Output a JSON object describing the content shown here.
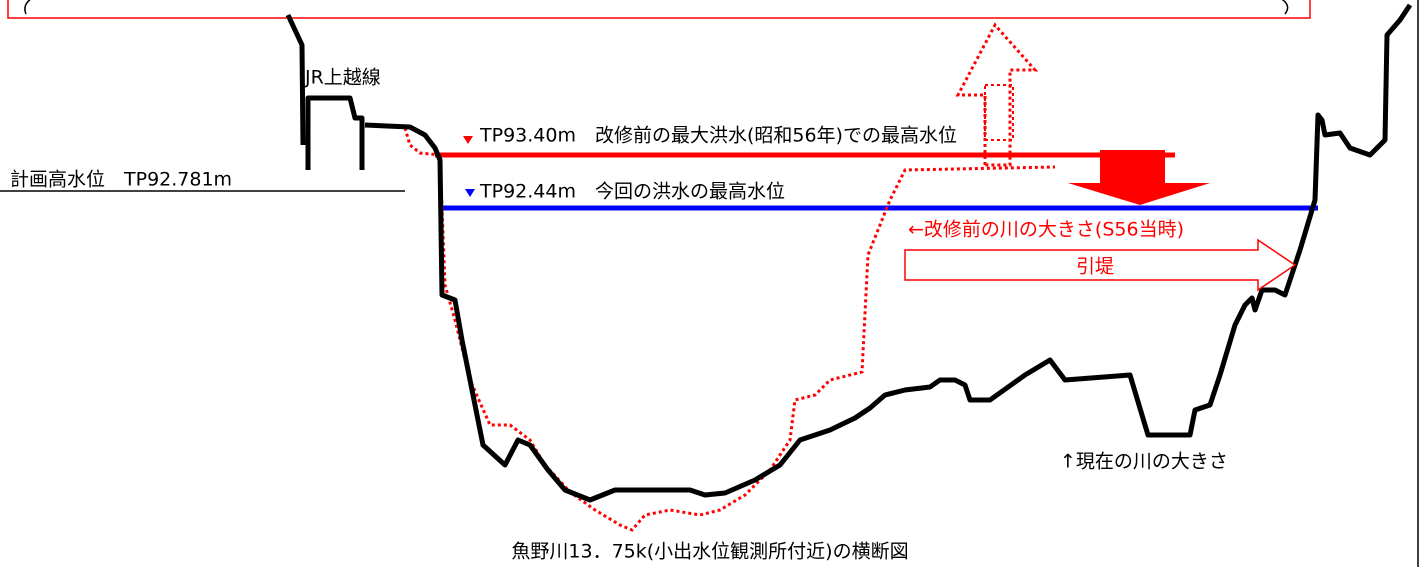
{
  "labels": {
    "railway": "JR上越線",
    "plan_level": "計画高水位　TP92.781m",
    "max_flood_old": "TP93.40m　改修前の最大洪水(昭和56年)での最高水位",
    "max_flood_now": "TP92.44m　今回の洪水の最高水位",
    "old_river": "←改修前の川の大きさ(S56当時)",
    "levee": "引堤",
    "current_river": "↑現在の川の大きさ",
    "caption": "魚野川13．75k(小出水位観測所付近)の横断図"
  }
}
